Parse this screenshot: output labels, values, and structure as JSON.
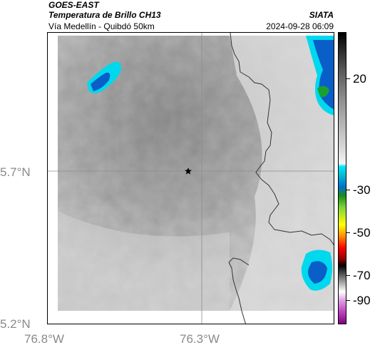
{
  "header": {
    "satellite": "GOES-EAST",
    "product": "Temperatura de Brillo CH13",
    "organization": "SIATA",
    "subtitle": "Vía Medellín - Quibdó 50km",
    "timestamp": "2024-09-28 06:09"
  },
  "axes": {
    "lat_labels": [
      "5.7°N",
      "5.2°N"
    ],
    "lon_labels": [
      "76.8°W",
      "76.3°W"
    ]
  },
  "colorbar": {
    "tick_labels": [
      "20",
      "-30",
      "-50",
      "-70",
      "-90"
    ],
    "colors": [
      "#000000",
      "#5a5a5a",
      "#b4b4b4",
      "#00e5ff",
      "#0070d0",
      "#7ed33a",
      "#ffff00",
      "#ff0000",
      "#8b0000",
      "#c040c0"
    ]
  },
  "map": {
    "marker_icon": "star-icon",
    "colors": {
      "cloud_gray": "#a8a8a8",
      "clear_gray": "#d8d8d8",
      "cold_cyan": "#00d8ee",
      "cold_blue": "#0a5ec8",
      "very_cold_green": "#1aa030",
      "boundary": "#333333",
      "gridline": "#8c8c8c"
    }
  }
}
